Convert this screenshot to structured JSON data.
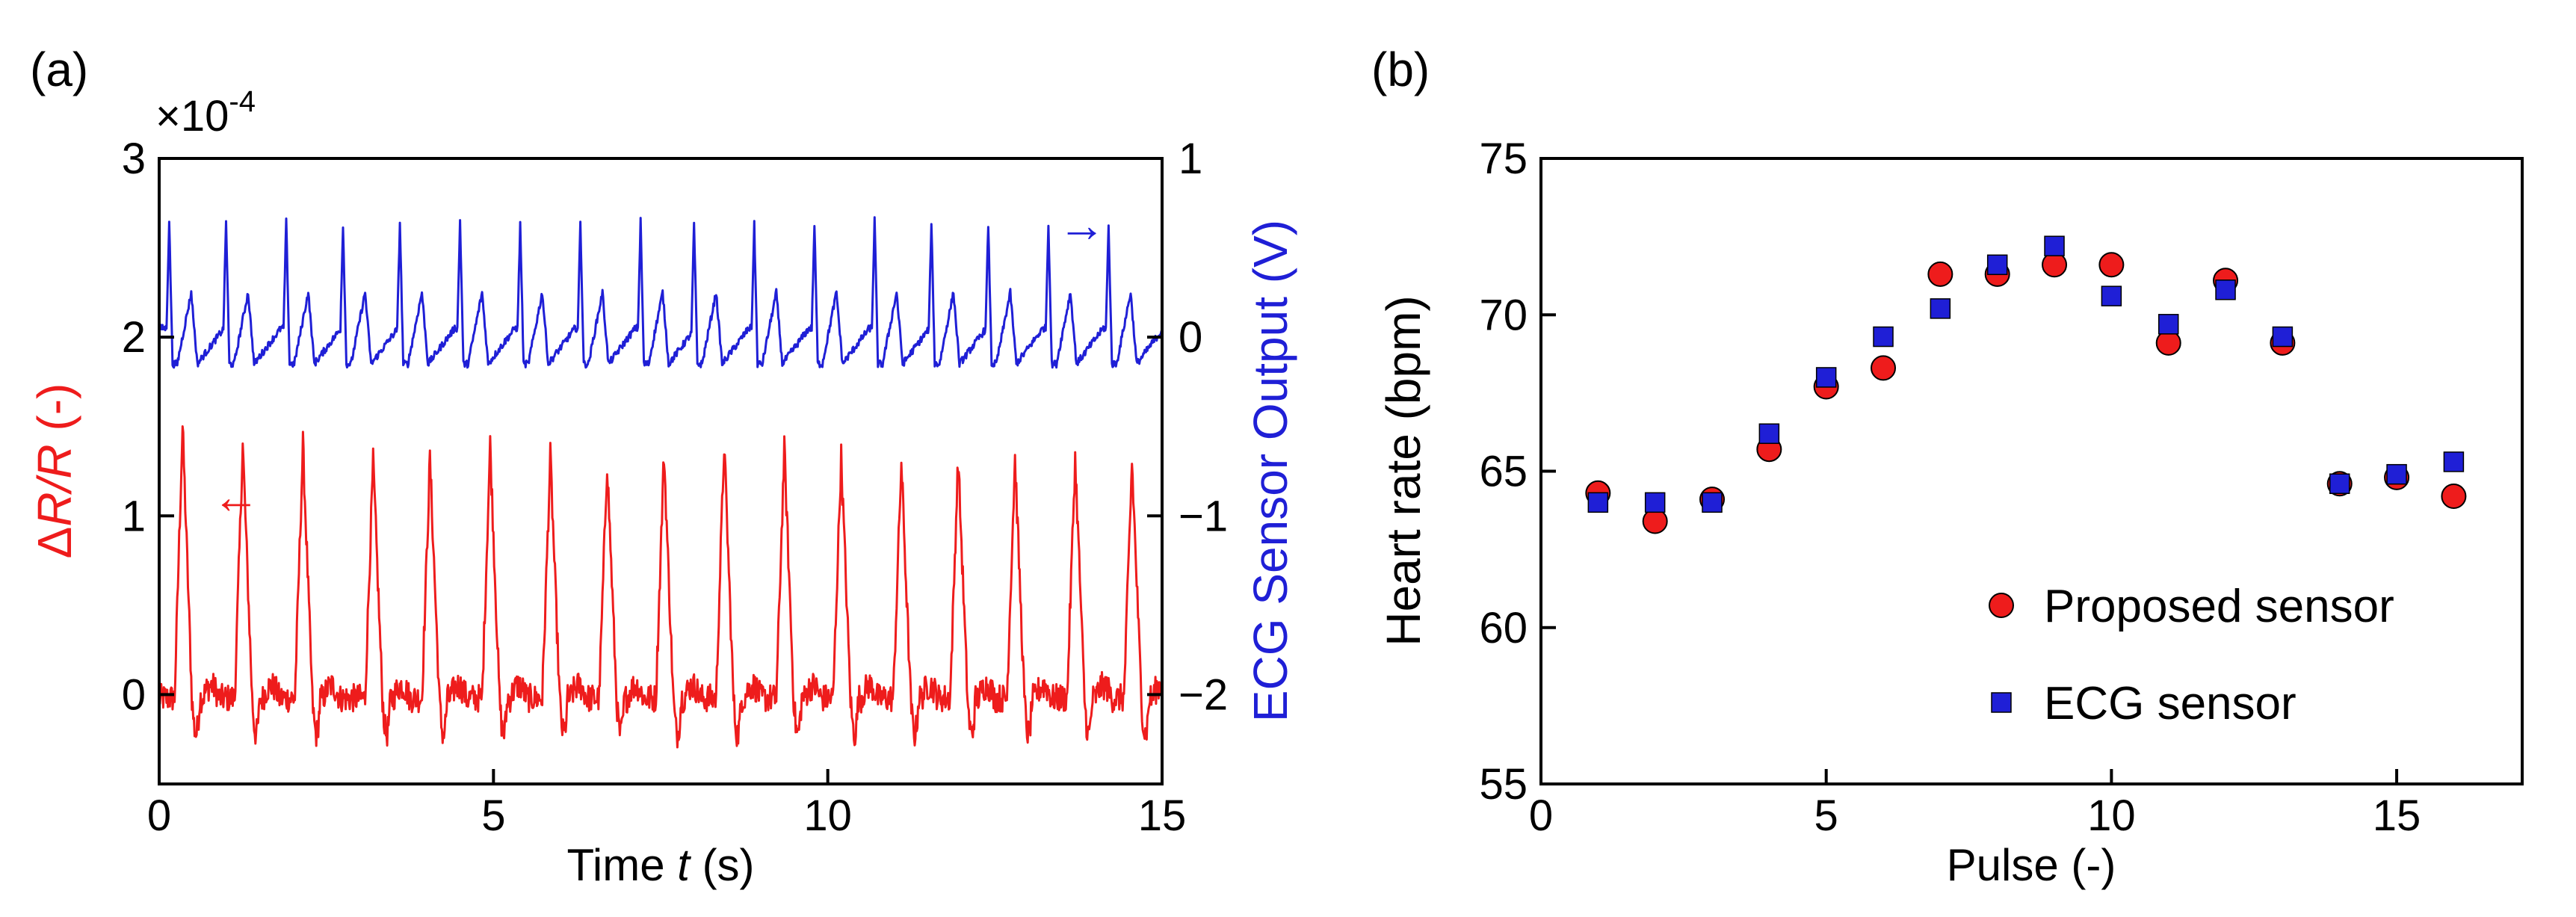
{
  "colors": {
    "red": "#ee1c1c",
    "blue": "#1f1fd6",
    "axis": "#000000"
  },
  "panel_labels": {
    "a": "(a)",
    "b": "(b)"
  },
  "chart_data": [
    {
      "type": "line",
      "panel": "(a)",
      "xlabel_prefix": "Time ",
      "xlabel_var": "t",
      "xlabel_suffix": " (s)",
      "xlim": [
        0,
        15
      ],
      "xticks": [
        "0",
        "5",
        "10",
        "15"
      ],
      "ylabel_left_delta": "Δ",
      "ylabel_left_var": "R/R",
      "ylabel_left_suffix": " (-)",
      "ylim_left": [
        -0.5,
        3
      ],
      "yticks_left": [
        "0",
        "1",
        "2",
        "3"
      ],
      "yscale_multiplier_base": "×10",
      "yscale_multiplier_exp": "-4",
      "ylabel_right_prefix": "ECG",
      "ylabel_right_rest": " Sensor Output (V)",
      "ylim_right": [
        -2.5,
        1
      ],
      "yticks_right": [
        "1",
        "0",
        "−1",
        "−2"
      ],
      "grid": false,
      "legend": "none",
      "series": [
        {
          "axis": "left",
          "color": "red",
          "peak_times": [
            0.35,
            1.25,
            2.15,
            3.2,
            4.05,
            4.95,
            5.85,
            6.7,
            7.55,
            8.45,
            9.35,
            10.2,
            11.1,
            11.95,
            12.8,
            13.7,
            14.55
          ],
          "peak_values": [
            1.5,
            1.4,
            1.4,
            1.3,
            1.32,
            1.4,
            1.33,
            1.3,
            1.35,
            1.4,
            1.37,
            1.33,
            1.3,
            1.32,
            1.32,
            1.32,
            1.3
          ],
          "baseline": -0.02,
          "trough": -0.22
        },
        {
          "axis": "right",
          "color": "blue",
          "peak_times": [
            0.15,
            1.0,
            1.9,
            2.75,
            3.6,
            4.5,
            5.4,
            6.3,
            7.2,
            8.0,
            8.9,
            9.8,
            10.7,
            11.55,
            12.4,
            13.3,
            14.2
          ],
          "peak_values": [
            0.65,
            0.65,
            0.65,
            0.63,
            0.64,
            0.65,
            0.63,
            0.64,
            0.65,
            0.64,
            0.63,
            0.63,
            0.66,
            0.64,
            0.63,
            0.64,
            0.62
          ],
          "secondary_bump": 0.25,
          "baseline": 0.05,
          "trough": -0.15
        }
      ],
      "annotations": [
        {
          "text": "←",
          "color": "red",
          "x": 1.15,
          "y": 1.1,
          "axis": "left"
        },
        {
          "text": "→",
          "color": "blue",
          "x": 13.8,
          "y": 0.62,
          "axis": "right"
        }
      ]
    },
    {
      "type": "scatter",
      "panel": "(b)",
      "xlabel": "Pulse (-)",
      "ylabel": "Heart rate (bpm)",
      "xlim": [
        0,
        17.2
      ],
      "ylim": [
        55,
        75
      ],
      "xticks": [
        "0",
        "5",
        "10",
        "15"
      ],
      "yticks": [
        "55",
        "60",
        "65",
        "70",
        "75"
      ],
      "grid": false,
      "legend": "lower-right",
      "series": [
        {
          "name": "Proposed sensor",
          "marker": "circle",
          "color": "red",
          "x": [
            1,
            2,
            3,
            4,
            5,
            6,
            7,
            8,
            9,
            10,
            11,
            12,
            13,
            14,
            15,
            16
          ],
          "y": [
            64.3,
            63.4,
            64.1,
            65.7,
            67.7,
            68.3,
            71.3,
            71.3,
            71.6,
            71.6,
            69.1,
            71.1,
            69.1,
            64.6,
            64.8,
            64.2
          ]
        },
        {
          "name": "ECG sensor",
          "marker": "square",
          "color": "blue",
          "x": [
            1,
            2,
            3,
            4,
            5,
            6,
            7,
            8,
            9,
            10,
            11,
            12,
            13,
            14,
            15,
            16
          ],
          "y": [
            64.0,
            64.0,
            64.0,
            66.2,
            68.0,
            69.3,
            70.2,
            71.6,
            72.2,
            70.6,
            69.7,
            70.8,
            69.3,
            64.6,
            64.9,
            65.3
          ]
        }
      ]
    }
  ]
}
